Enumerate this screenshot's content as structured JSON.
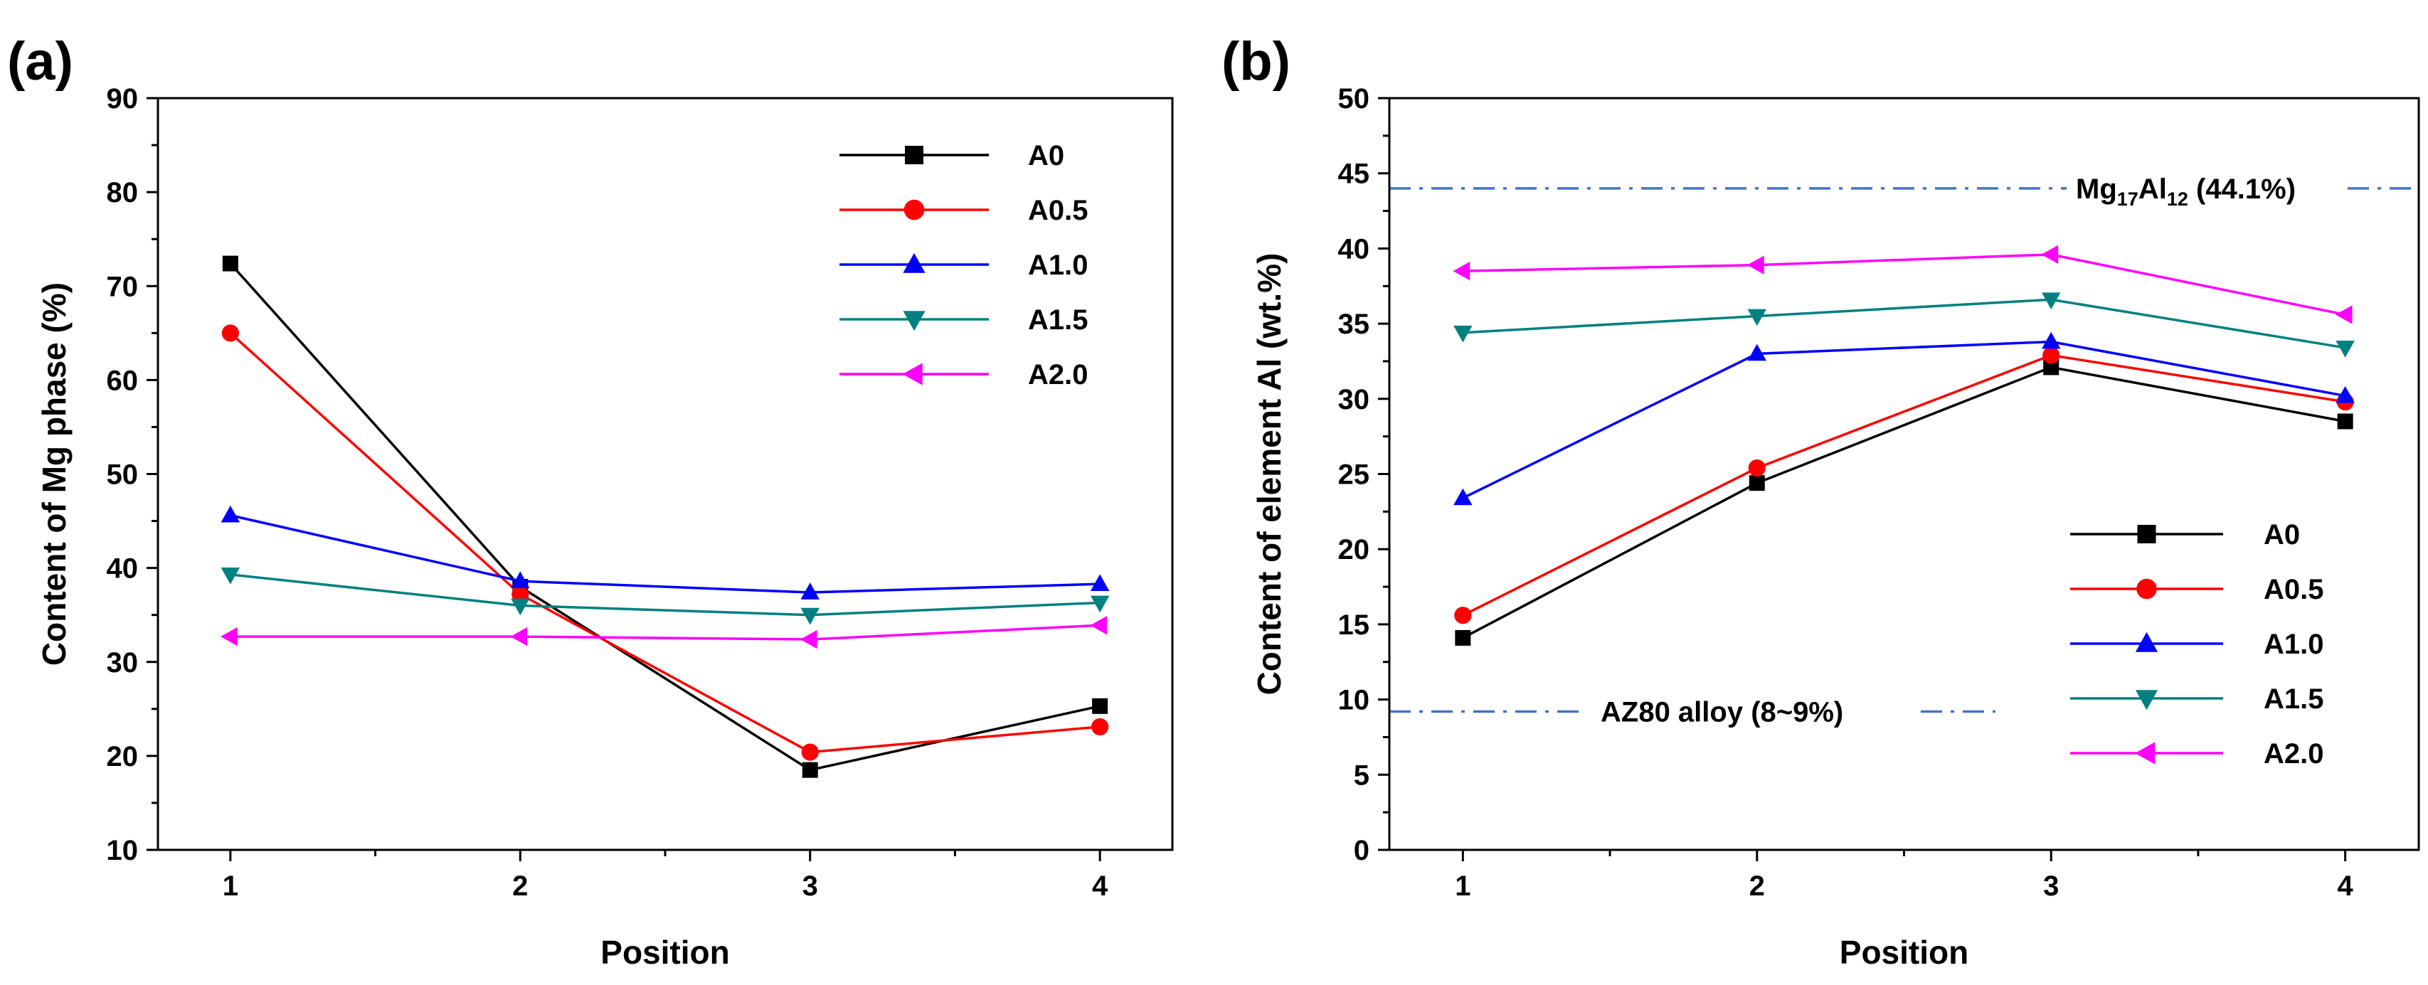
{
  "chart_data": [
    {
      "type": "line",
      "panel_label": "(a)",
      "xlabel": "Position",
      "ylabel": "Content of Mg phase (%)",
      "x": [
        1,
        2,
        3,
        4
      ],
      "xlim": [
        0.75,
        4.25
      ],
      "ylim": [
        10,
        90
      ],
      "yticks": [
        10,
        20,
        30,
        40,
        50,
        60,
        70,
        80,
        90
      ],
      "legend_position": "top-right",
      "series": [
        {
          "name": "A0",
          "color": "#000000",
          "marker": "square",
          "values": [
            72.4,
            38.0,
            18.5,
            25.3
          ]
        },
        {
          "name": "A0.5",
          "color": "#ff0000",
          "marker": "circle",
          "values": [
            65.0,
            37.2,
            20.4,
            23.1
          ]
        },
        {
          "name": "A1.0",
          "color": "#0000ff",
          "marker": "triangle-up",
          "values": [
            45.6,
            38.6,
            37.4,
            38.3
          ]
        },
        {
          "name": "A1.5",
          "color": "#008080",
          "marker": "triangle-down",
          "values": [
            39.3,
            36.0,
            35.0,
            36.3
          ]
        },
        {
          "name": "A2.0",
          "color": "#ff00ff",
          "marker": "triangle-left",
          "values": [
            32.7,
            32.7,
            32.4,
            33.9
          ]
        }
      ]
    },
    {
      "type": "line",
      "panel_label": "(b)",
      "xlabel": "Position",
      "ylabel": "Content of element Al (wt.%)",
      "x": [
        1,
        2,
        3,
        4
      ],
      "xlim": [
        0.75,
        4.25
      ],
      "ylim": [
        0,
        50
      ],
      "yticks": [
        0,
        5,
        10,
        15,
        20,
        25,
        30,
        35,
        40,
        45,
        50
      ],
      "legend_position": "bottom-right",
      "reference_lines": [
        {
          "y": 44.0,
          "label_parts": [
            "Mg",
            "17",
            "Al",
            "12",
            " (44.1%)"
          ],
          "color": "#4472c4"
        },
        {
          "y": 9.2,
          "label": "AZ80 alloy (8~9%)",
          "color": "#4472c4"
        }
      ],
      "series": [
        {
          "name": "A0",
          "color": "#000000",
          "marker": "square",
          "values": [
            14.1,
            24.4,
            32.1,
            28.5
          ]
        },
        {
          "name": "A0.5",
          "color": "#ff0000",
          "marker": "circle",
          "values": [
            15.6,
            25.4,
            32.9,
            29.8
          ]
        },
        {
          "name": "A1.0",
          "color": "#0000ff",
          "marker": "triangle-up",
          "values": [
            23.4,
            33.0,
            33.8,
            30.2
          ]
        },
        {
          "name": "A1.5",
          "color": "#008080",
          "marker": "triangle-down",
          "values": [
            34.4,
            35.5,
            36.6,
            33.4
          ]
        },
        {
          "name": "A2.0",
          "color": "#ff00ff",
          "marker": "triangle-left",
          "values": [
            38.5,
            38.9,
            39.6,
            35.6
          ]
        }
      ]
    }
  ]
}
